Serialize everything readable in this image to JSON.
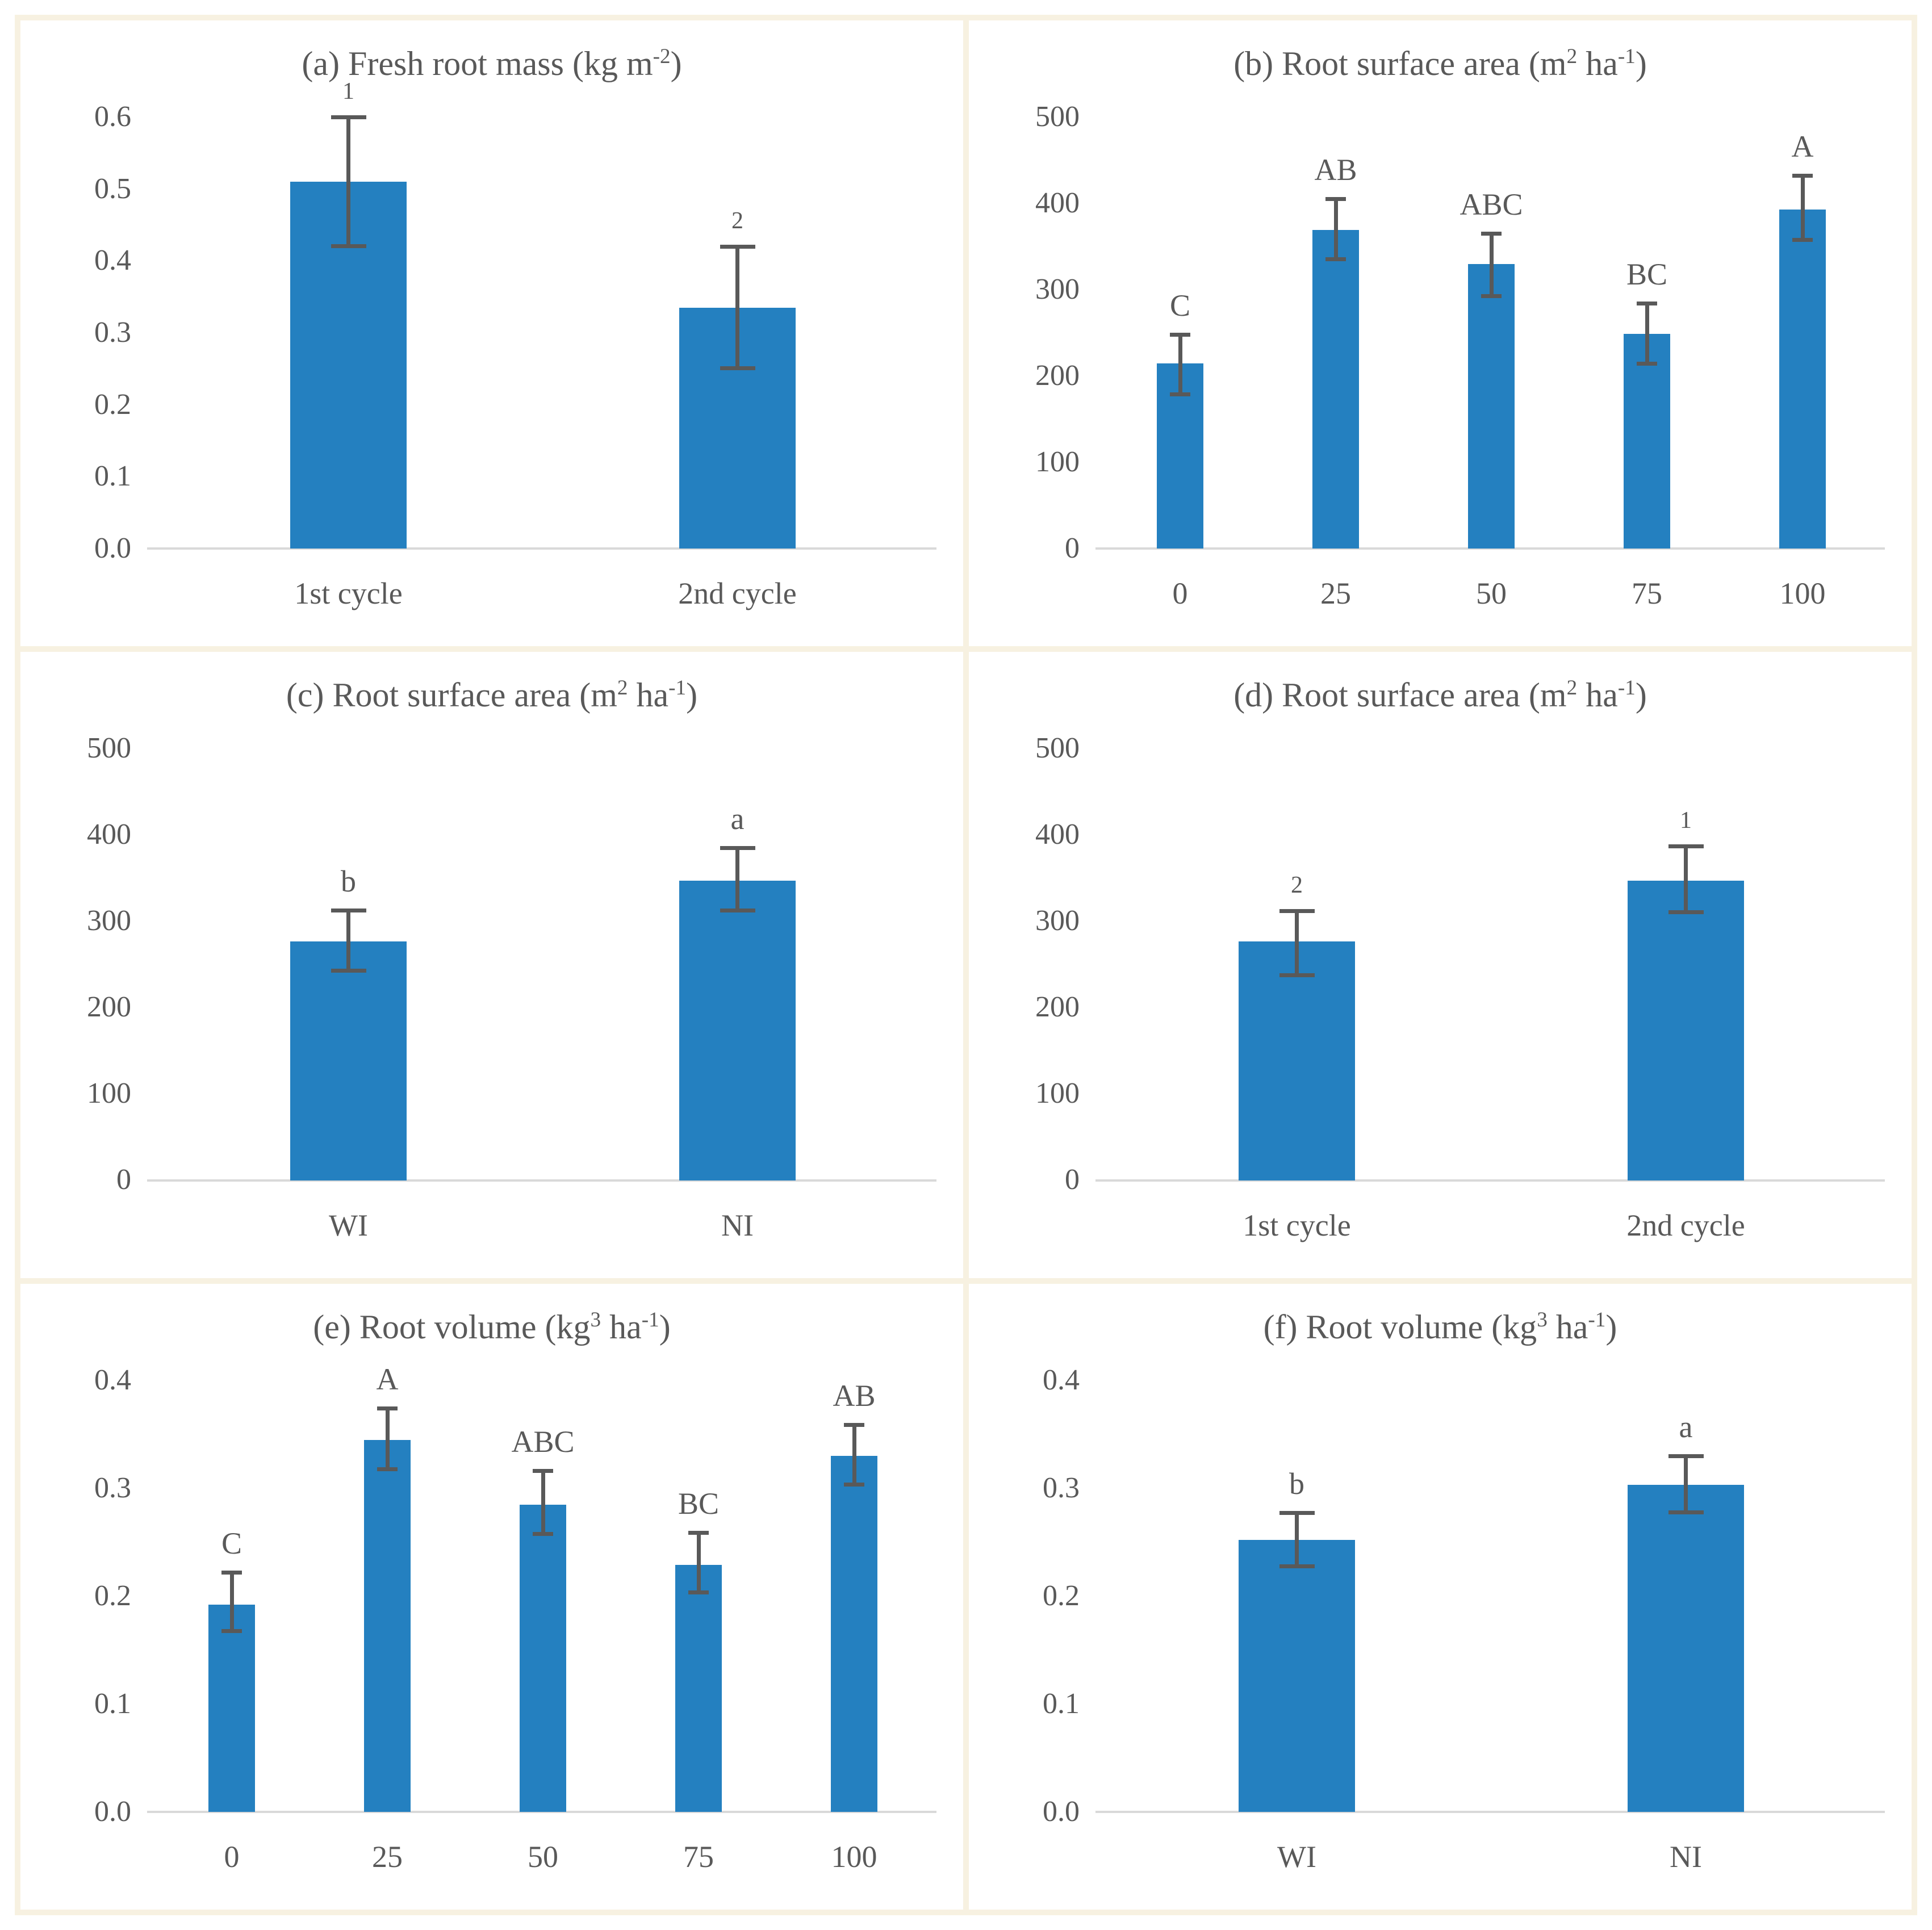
{
  "figure": {
    "bar_color": "#2480C0",
    "error_bar_color": "#595959",
    "text_color": "#595959",
    "axis_line_color": "#D9D9D9",
    "panel_background": "#FFFFFF",
    "divider_color": "#F7F1E1"
  },
  "chart_data": [
    {
      "id": "a",
      "type": "bar",
      "title": {
        "pre1": "(a) Fresh root mass (kg m",
        "sup1": "",
        "mid": "",
        "sup2": "-2",
        "post": ")"
      },
      "title_text": "(a) Fresh root mass (kg m-2)",
      "categories": [
        "1st cycle",
        "2nd cycle"
      ],
      "values": [
        0.51,
        0.335
      ],
      "err_low": [
        0.42,
        0.25
      ],
      "err_high": [
        0.6,
        0.42
      ],
      "sig_labels": [
        "1",
        "2"
      ],
      "ylim": [
        0,
        0.6
      ],
      "yticks": [
        [
          0.0,
          "0.0"
        ],
        [
          0.1,
          "0.1"
        ],
        [
          0.2,
          "0.2"
        ],
        [
          0.3,
          "0.3"
        ],
        [
          0.4,
          "0.4"
        ],
        [
          0.5,
          "0.5"
        ],
        [
          0.6,
          "0.6"
        ]
      ],
      "grid": false,
      "legend": "none"
    },
    {
      "id": "b",
      "type": "bar",
      "title": {
        "pre1": "(b) Root surface area (m",
        "sup1": "2",
        "mid": " ha",
        "sup2": "-1",
        "post": ")"
      },
      "title_text": "(b) Root surface area (m2 ha-1)",
      "categories": [
        "0",
        "25",
        "50",
        "75",
        "100"
      ],
      "values": [
        215,
        369,
        330,
        249,
        393
      ],
      "err_low": [
        178,
        335,
        292,
        214,
        357
      ],
      "err_high": [
        248,
        405,
        365,
        284,
        432
      ],
      "sig_labels": [
        "C",
        "AB",
        "ABC",
        "BC",
        "A"
      ],
      "ylim": [
        0,
        500
      ],
      "yticks": [
        [
          0,
          "0"
        ],
        [
          100,
          "100"
        ],
        [
          200,
          "200"
        ],
        [
          300,
          "300"
        ],
        [
          400,
          "400"
        ],
        [
          500,
          "500"
        ]
      ],
      "grid": false,
      "legend": "none"
    },
    {
      "id": "c",
      "type": "bar",
      "title": {
        "pre1": "(c) Root surface area (m",
        "sup1": "2",
        "mid": " ha",
        "sup2": "-1",
        "post": ")"
      },
      "title_text": "(c) Root surface area (m2 ha-1)",
      "categories": [
        "WI",
        "NI"
      ],
      "values": [
        277,
        347
      ],
      "err_low": [
        242,
        312
      ],
      "err_high": [
        313,
        385
      ],
      "sig_labels": [
        "b",
        "a"
      ],
      "ylim": [
        0,
        500
      ],
      "yticks": [
        [
          0,
          "0"
        ],
        [
          100,
          "100"
        ],
        [
          200,
          "200"
        ],
        [
          300,
          "300"
        ],
        [
          400,
          "400"
        ],
        [
          500,
          "500"
        ]
      ],
      "grid": false,
      "legend": "none"
    },
    {
      "id": "d",
      "type": "bar",
      "title": {
        "pre1": "(d) Root surface area (m",
        "sup1": "2",
        "mid": " ha",
        "sup2": "-1",
        "post": ")"
      },
      "title_text": "(d) Root surface area (m2 ha-1)",
      "categories": [
        "1st cycle",
        "2nd cycle"
      ],
      "values": [
        277,
        347
      ],
      "err_low": [
        237,
        310
      ],
      "err_high": [
        312,
        387
      ],
      "sig_labels": [
        "2",
        "1"
      ],
      "ylim": [
        0,
        500
      ],
      "yticks": [
        [
          0,
          "0"
        ],
        [
          100,
          "100"
        ],
        [
          200,
          "200"
        ],
        [
          300,
          "300"
        ],
        [
          400,
          "400"
        ],
        [
          500,
          "500"
        ]
      ],
      "grid": false,
      "legend": "none"
    },
    {
      "id": "e",
      "type": "bar",
      "title": {
        "pre1": "(e) Root volume (kg",
        "sup1": "3",
        "mid": " ha",
        "sup2": "-1",
        "post": ")"
      },
      "title_text": "(e) Root volume (kg3 ha-1)",
      "categories": [
        "0",
        "25",
        "50",
        "75",
        "100"
      ],
      "values": [
        0.192,
        0.345,
        0.285,
        0.229,
        0.33
      ],
      "err_low": [
        0.167,
        0.317,
        0.257,
        0.203,
        0.303
      ],
      "err_high": [
        0.222,
        0.374,
        0.316,
        0.259,
        0.359
      ],
      "sig_labels": [
        "C",
        "A",
        "ABC",
        "BC",
        "AB"
      ],
      "ylim": [
        0,
        0.4
      ],
      "yticks": [
        [
          0.0,
          "0.0"
        ],
        [
          0.1,
          "0.1"
        ],
        [
          0.2,
          "0.2"
        ],
        [
          0.3,
          "0.3"
        ],
        [
          0.4,
          "0.4"
        ]
      ],
      "grid": false,
      "legend": "none"
    },
    {
      "id": "f",
      "type": "bar",
      "title": {
        "pre1": "(f) Root volume (kg",
        "sup1": "3",
        "mid": " ha",
        "sup2": "-1",
        "post": ")"
      },
      "title_text": "(f) Root volume (kg3 ha-1)",
      "categories": [
        "WI",
        "NI"
      ],
      "values": [
        0.252,
        0.303
      ],
      "err_low": [
        0.227,
        0.277
      ],
      "err_high": [
        0.277,
        0.33
      ],
      "sig_labels": [
        "b",
        "a"
      ],
      "ylim": [
        0,
        0.4
      ],
      "yticks": [
        [
          0.0,
          "0.0"
        ],
        [
          0.1,
          "0.1"
        ],
        [
          0.2,
          "0.2"
        ],
        [
          0.3,
          "0.3"
        ],
        [
          0.4,
          "0.4"
        ]
      ],
      "grid": false,
      "legend": "none"
    }
  ]
}
